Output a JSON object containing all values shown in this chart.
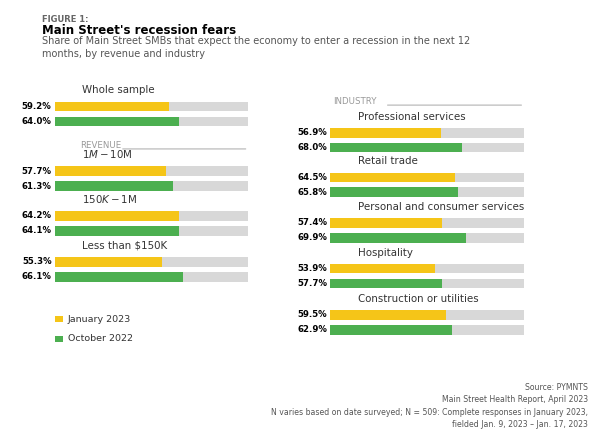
{
  "figure_label": "FIGURE 1:",
  "title": "Main Street's recession fears",
  "subtitle": "Share of Main Street SMBs that expect the economy to enter a recession in the next 12\nmonths, by revenue and industry",
  "color_jan": "#F5C518",
  "color_oct": "#4CAF50",
  "color_bg_bar": "#D8D8D8",
  "bar_max": 100,
  "left_groups": [
    {
      "label": "Whole sample",
      "jan": 59.2,
      "oct": 64.0
    },
    {
      "label": "$1M-$10M",
      "jan": 57.7,
      "oct": 61.3
    },
    {
      "label": "$150K-$1M",
      "jan": 64.2,
      "oct": 64.1
    },
    {
      "label": "Less than $150K",
      "jan": 55.3,
      "oct": 66.1
    }
  ],
  "right_groups": [
    {
      "label": "Professional services",
      "jan": 56.9,
      "oct": 68.0
    },
    {
      "label": "Retail trade",
      "jan": 64.5,
      "oct": 65.8
    },
    {
      "label": "Personal and consumer services",
      "jan": 57.4,
      "oct": 69.9
    },
    {
      "label": "Hospitality",
      "jan": 53.9,
      "oct": 57.7
    },
    {
      "label": "Construction or utilities",
      "jan": 59.5,
      "oct": 62.9
    }
  ],
  "legend_jan": "January 2023",
  "legend_oct": "October 2022",
  "source_text": "Source: PYMNTS\nMain Street Health Report, April 2023\nN varies based on date surveyed; N = 509: Complete responses in January 2023,\nfielded Jan. 9, 2023 – Jan. 17, 2023"
}
